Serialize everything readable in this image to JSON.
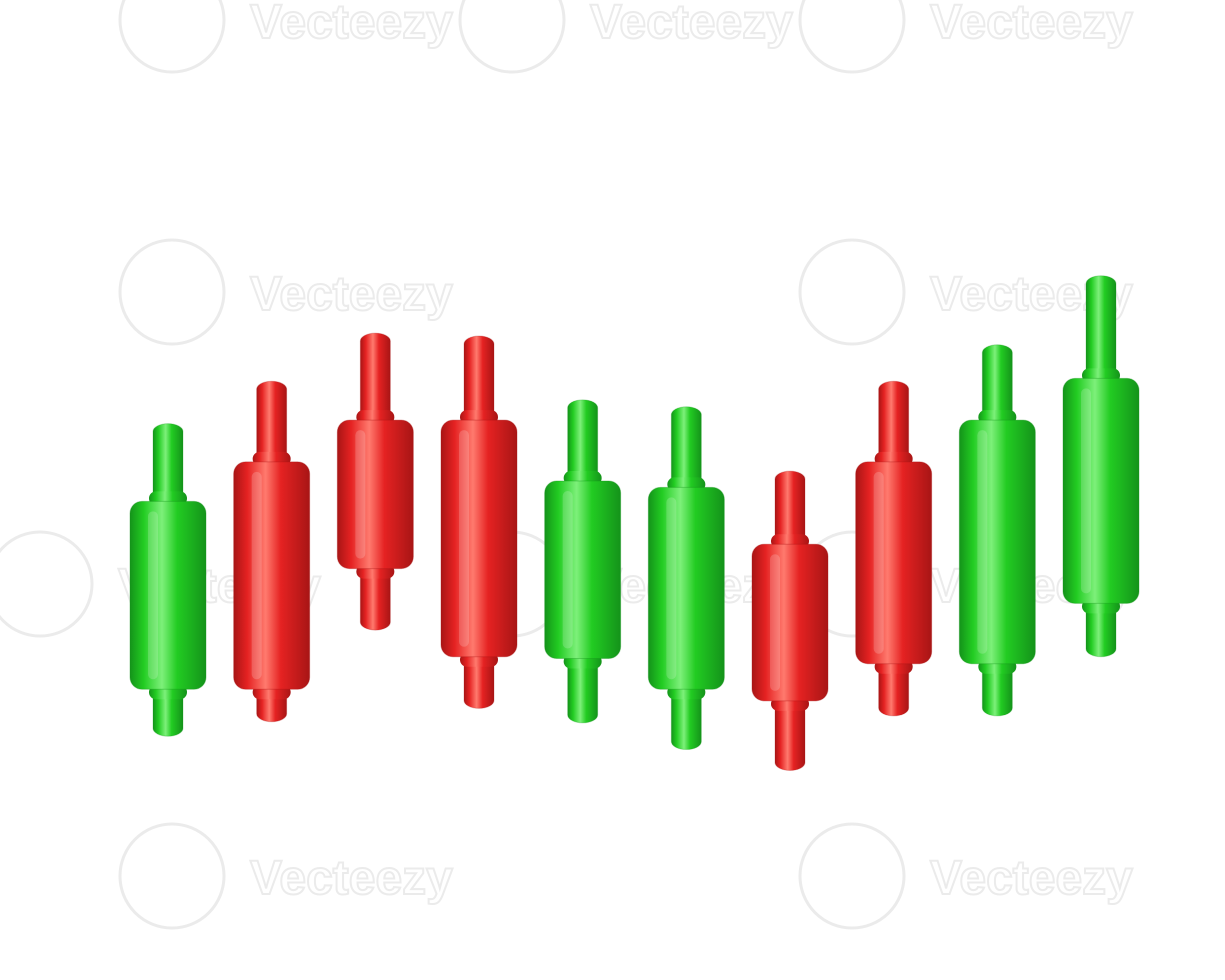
{
  "watermark": {
    "text": "Vecteezy",
    "icon": "vecteezy-v-logo"
  },
  "colors": {
    "background": "#ffffff",
    "bullish": "#22cc22",
    "bullish_light": "#7df07a",
    "bullish_dark": "#14931a",
    "bearish": "#e52222",
    "bearish_light": "#ff7a6e",
    "bearish_dark": "#a81515",
    "watermark": "#e9e9e9"
  },
  "chart_data": {
    "type": "candlestick",
    "title": "",
    "xlabel": "",
    "ylabel": "",
    "grid": false,
    "axes_visible": false,
    "legend": "none",
    "ylim": [
      0,
      100
    ],
    "candles": [
      {
        "direction": "up",
        "open": 12.2,
        "close": 44.6,
        "high": 58.0,
        "low": 4.1
      },
      {
        "direction": "down",
        "open": 51.4,
        "close": 12.2,
        "high": 65.3,
        "low": 6.6
      },
      {
        "direction": "down",
        "open": 58.6,
        "close": 33.0,
        "high": 73.6,
        "low": 22.4
      },
      {
        "direction": "down",
        "open": 58.6,
        "close": 17.8,
        "high": 73.1,
        "low": 8.9
      },
      {
        "direction": "up",
        "open": 17.5,
        "close": 48.1,
        "high": 62.1,
        "low": 6.4
      },
      {
        "direction": "up",
        "open": 12.2,
        "close": 47.0,
        "high": 60.9,
        "low": 1.8
      },
      {
        "direction": "down",
        "open": 37.2,
        "close": 10.2,
        "high": 49.8,
        "low": -1.8
      },
      {
        "direction": "down",
        "open": 51.4,
        "close": 16.6,
        "high": 65.3,
        "low": 7.6
      },
      {
        "direction": "up",
        "open": 16.6,
        "close": 58.6,
        "high": 71.6,
        "low": 7.6
      },
      {
        "direction": "up",
        "open": 27.0,
        "close": 65.8,
        "high": 83.5,
        "low": 17.8
      }
    ]
  }
}
